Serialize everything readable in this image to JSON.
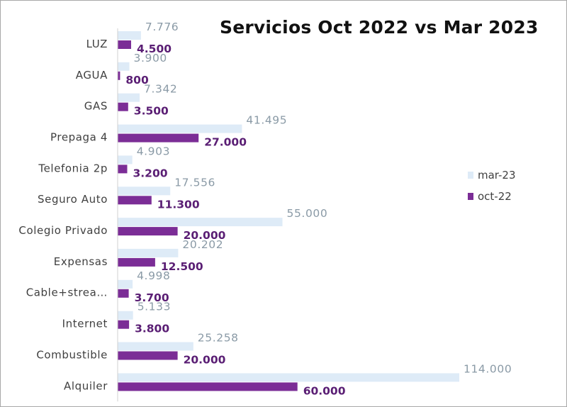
{
  "chart_data": {
    "type": "bar",
    "orientation": "horizontal",
    "title": "Servicios  Oct 2022 vs Mar 2023",
    "categories": [
      "LUZ",
      "AGUA",
      "GAS",
      "Prepaga 4",
      "Telefonia 2p",
      "Seguro Auto",
      "Colegio Privado",
      "Expensas",
      "Cable+strea…",
      "Internet",
      "Combustible",
      "Alquiler"
    ],
    "series": [
      {
        "name": "mar-23",
        "color": "#deebf7",
        "values": [
          7776,
          3900,
          7342,
          41495,
          4903,
          17556,
          55000,
          20202,
          4998,
          5133,
          25258,
          114000
        ],
        "labels": [
          "7.776",
          "3.900",
          "7.342",
          "41.495",
          "4.903",
          "17.556",
          "55.000",
          "20.202",
          "4.998",
          "5.133",
          "25.258",
          "114.000"
        ]
      },
      {
        "name": "oct-22",
        "color": "#7b2d96",
        "values": [
          4500,
          800,
          3500,
          27000,
          3200,
          11300,
          20000,
          12500,
          3700,
          3800,
          20000,
          60000
        ],
        "labels": [
          "4.500",
          "800",
          "3.500",
          "27.000",
          "3.200",
          "11.300",
          "20.000",
          "12.500",
          "3.700",
          "3.800",
          "20.000",
          "60.000"
        ]
      }
    ],
    "xlim": [
      0,
      114000
    ],
    "legend_position": "right",
    "grid": false
  }
}
